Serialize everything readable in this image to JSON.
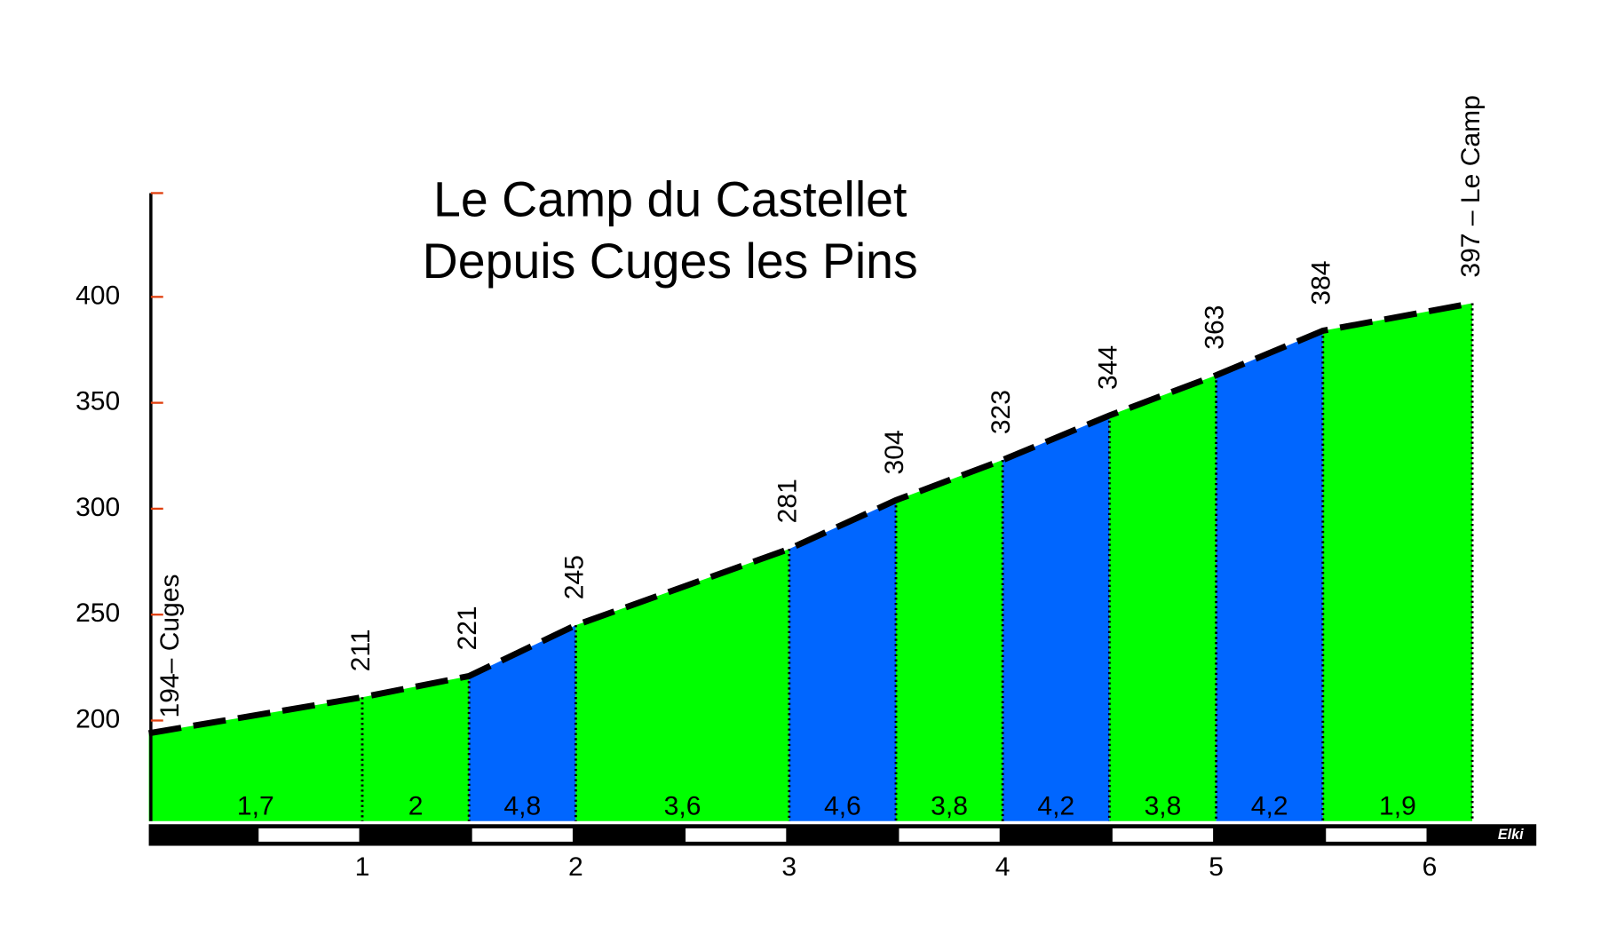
{
  "chart_data": {
    "type": "profile",
    "title": "Le Camp du Castellet",
    "subtitle": "Depuis Cuges les Pins",
    "x": [
      0,
      1,
      1.5,
      2,
      3,
      3.5,
      4,
      4.5,
      5,
      5.5,
      6.2
    ],
    "values": [
      194,
      211,
      221,
      245,
      281,
      304,
      323,
      344,
      363,
      384,
      397
    ],
    "value_labels": [
      "194– Cuges",
      "211",
      "221",
      "245",
      "281",
      "304",
      "323",
      "344",
      "363",
      "384",
      "397 – Le Camp"
    ],
    "segments": {
      "values": [
        1.7,
        2,
        4.8,
        3.6,
        4.6,
        3.8,
        4.2,
        3.8,
        4.2,
        1.9
      ],
      "value_labels": [
        "1,7",
        "2",
        "4,8",
        "3,6",
        "4,6",
        "3,8",
        "4,2",
        "3,8",
        "4,2",
        "1,9"
      ],
      "colors": [
        "#00ff00",
        "#00ff00",
        "#0066ff",
        "#00ff00",
        "#0066ff",
        "#00ff00",
        "#0066ff",
        "#00ff00",
        "#0066ff",
        "#00ff00"
      ]
    },
    "line_color": "#000000",
    "xlim": [
      0,
      6.5
    ],
    "xticks": [
      1,
      2,
      3,
      4,
      5,
      6
    ],
    "ylim": [
      152.5,
      449
    ],
    "yticks": [
      200,
      250,
      300,
      350,
      400
    ],
    "credit": "Elki"
  }
}
